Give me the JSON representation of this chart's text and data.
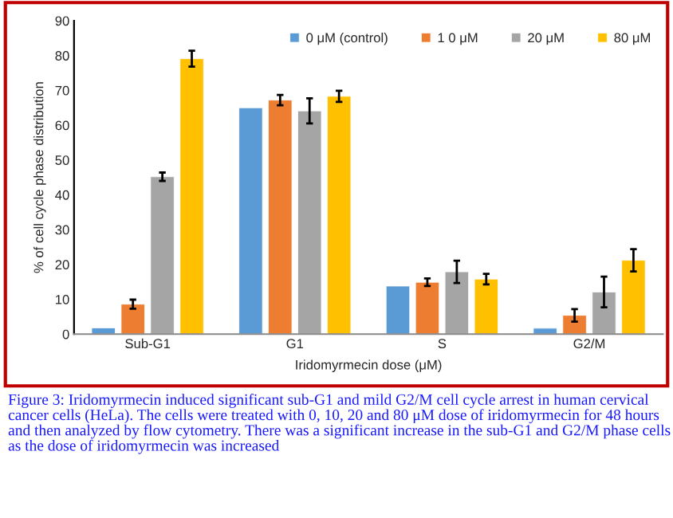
{
  "chart_data": {
    "type": "bar",
    "xlabel": "Iridomyrmecin dose (μM)",
    "ylabel": "% of cell cycle phase distribution",
    "categories": [
      "Sub-G1",
      "G1",
      "S",
      "G2/M"
    ],
    "series": [
      {
        "name": "0 μM (control)",
        "color": "#5b9bd5",
        "values": [
          1.8,
          65.0,
          13.8,
          1.7
        ]
      },
      {
        "name": "1 0 μM",
        "color": "#ed7d31",
        "values": [
          8.6,
          67.2,
          14.9,
          5.4
        ],
        "errors": [
          1.3,
          1.5,
          1.1,
          1.8
        ]
      },
      {
        "name": "20 μM",
        "color": "#a5a5a5",
        "values": [
          45.2,
          64.1,
          17.9,
          12.1
        ],
        "errors": [
          1.2,
          3.6,
          3.2,
          4.4
        ]
      },
      {
        "name": "80 μM",
        "color": "#ffc000",
        "values": [
          79.1,
          68.3,
          15.8,
          21.2
        ],
        "errors": [
          2.3,
          1.6,
          1.5,
          3.2
        ]
      }
    ],
    "ylim": [
      0,
      90
    ],
    "yticks": [
      0,
      10,
      20,
      30,
      40,
      50,
      60,
      70,
      80,
      90
    ],
    "grid": false,
    "legend": "top right",
    "annotations": [
      "Figure 3: Iridomyrmecin induced significant sub-G1 and mild G2/M cell cycle arrest in human cervical cancer cells (HeLa). The cells were treated with 0, 10, 20 and 80 μM dose of iridomyrmecin for 48 hours and then analyzed by flow cytometry. There was a significant increase in the sub-G1 and G2/M phase cells as the dose of iridomyrmecin was increased"
    ]
  }
}
